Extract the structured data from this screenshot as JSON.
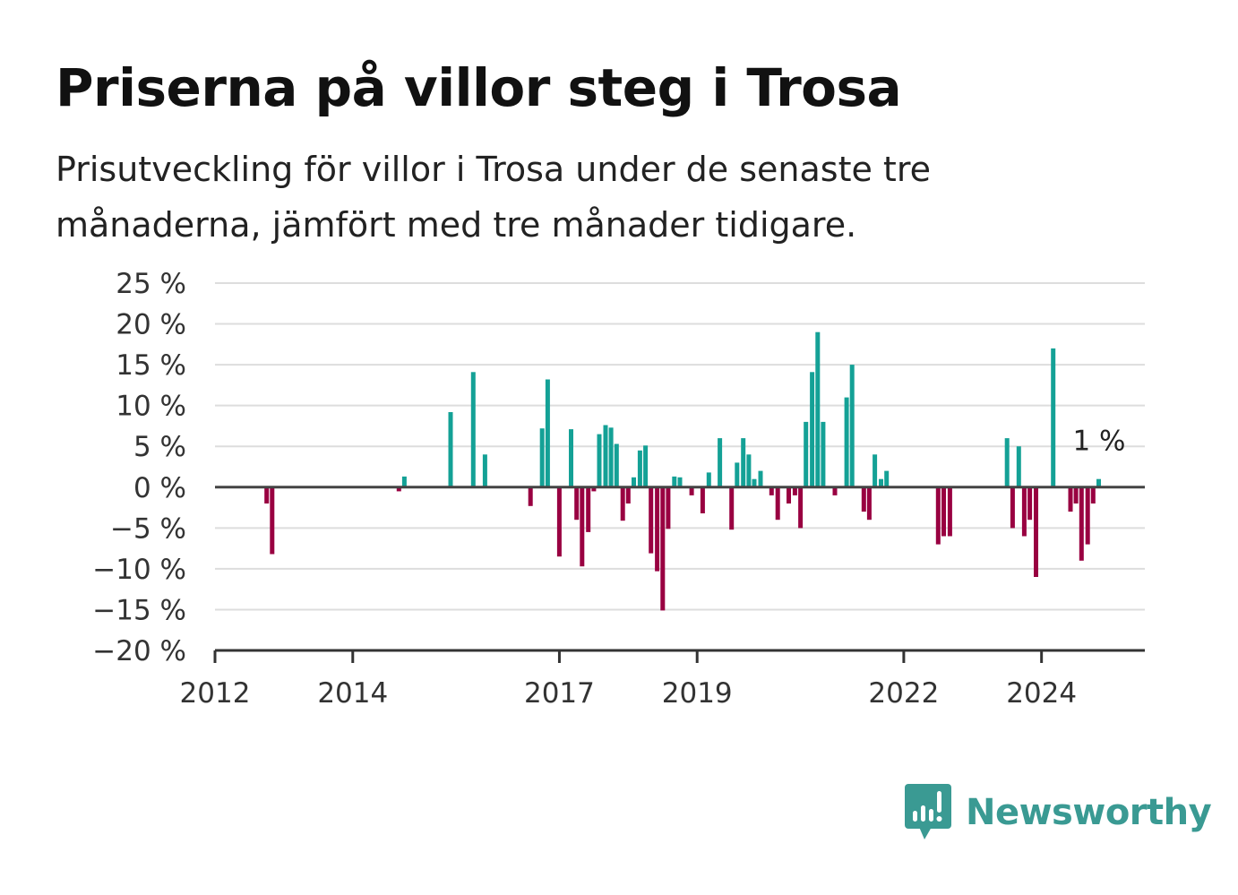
{
  "header": {
    "title": "Priserna på villor steg i Trosa",
    "subtitle": "Prisutveckling för villor i Trosa under de senaste tre månaderna, jämfört med tre månader tidigare."
  },
  "brand": {
    "name": "Newsworthy",
    "color": "#3a9a93",
    "icon": "newsworthy-chart-bubble-icon"
  },
  "chart_data": {
    "type": "bar",
    "title": "Priserna på villor steg i Trosa",
    "subtitle": "Prisutveckling för villor i Trosa under de senaste tre månaderna, jämfört med tre månader tidigare.",
    "xlabel": "",
    "ylabel": "",
    "ylim": [
      -20,
      25
    ],
    "xlim": [
      2012.0,
      2025.5
    ],
    "x_ticks": [
      {
        "value": 2012,
        "label": "2012"
      },
      {
        "value": 2014,
        "label": "2014"
      },
      {
        "value": 2017,
        "label": "2017"
      },
      {
        "value": 2019,
        "label": "2019"
      },
      {
        "value": 2022,
        "label": "2022"
      },
      {
        "value": 2024,
        "label": "2024"
      }
    ],
    "y_ticks": [
      {
        "value": 25,
        "label": "25 %"
      },
      {
        "value": 20,
        "label": "20 %"
      },
      {
        "value": 15,
        "label": "15 %"
      },
      {
        "value": 10,
        "label": "10 %"
      },
      {
        "value": 5,
        "label": "5 %"
      },
      {
        "value": 0,
        "label": "0 %"
      },
      {
        "value": -5,
        "label": "−5 %"
      },
      {
        "value": -10,
        "label": "−10 %"
      },
      {
        "value": -15,
        "label": "−15 %"
      },
      {
        "value": -20,
        "label": "−20 %"
      }
    ],
    "grid": true,
    "legend": "none",
    "colors": {
      "positive": "#14a196",
      "negative": "#990041",
      "zero_line": "#444444",
      "grid": "#dddddd"
    },
    "points": [
      {
        "x": 2012.75,
        "y": -2
      },
      {
        "x": 2012.83,
        "y": -8.2
      },
      {
        "x": 2014.67,
        "y": -0.5
      },
      {
        "x": 2014.75,
        "y": 1.3
      },
      {
        "x": 2015.42,
        "y": 9.2
      },
      {
        "x": 2015.75,
        "y": 14.1
      },
      {
        "x": 2015.92,
        "y": 4
      },
      {
        "x": 2016.58,
        "y": -2.3
      },
      {
        "x": 2016.75,
        "y": 7.2
      },
      {
        "x": 2016.83,
        "y": 13.2
      },
      {
        "x": 2017.0,
        "y": -8.5
      },
      {
        "x": 2017.17,
        "y": 7.1
      },
      {
        "x": 2017.25,
        "y": -4
      },
      {
        "x": 2017.33,
        "y": -9.7
      },
      {
        "x": 2017.42,
        "y": -5.5
      },
      {
        "x": 2017.5,
        "y": -0.5
      },
      {
        "x": 2017.58,
        "y": 6.5
      },
      {
        "x": 2017.67,
        "y": 7.6
      },
      {
        "x": 2017.75,
        "y": 7.3
      },
      {
        "x": 2017.83,
        "y": 5.3
      },
      {
        "x": 2017.92,
        "y": -4.1
      },
      {
        "x": 2018.0,
        "y": -2
      },
      {
        "x": 2018.08,
        "y": 1.2
      },
      {
        "x": 2018.17,
        "y": 4.5
      },
      {
        "x": 2018.25,
        "y": 5.1
      },
      {
        "x": 2018.33,
        "y": -8.1
      },
      {
        "x": 2018.42,
        "y": -10.3
      },
      {
        "x": 2018.5,
        "y": -15.1
      },
      {
        "x": 2018.58,
        "y": -5.1
      },
      {
        "x": 2018.67,
        "y": 1.3
      },
      {
        "x": 2018.75,
        "y": 1.2
      },
      {
        "x": 2018.92,
        "y": -1
      },
      {
        "x": 2019.08,
        "y": -3.2
      },
      {
        "x": 2019.17,
        "y": 1.8
      },
      {
        "x": 2019.33,
        "y": 6
      },
      {
        "x": 2019.5,
        "y": -5.2
      },
      {
        "x": 2019.58,
        "y": 3
      },
      {
        "x": 2019.67,
        "y": 6
      },
      {
        "x": 2019.75,
        "y": 4
      },
      {
        "x": 2019.83,
        "y": 1
      },
      {
        "x": 2019.92,
        "y": 2
      },
      {
        "x": 2020.08,
        "y": -1
      },
      {
        "x": 2020.17,
        "y": -4
      },
      {
        "x": 2020.33,
        "y": -2
      },
      {
        "x": 2020.42,
        "y": -1
      },
      {
        "x": 2020.5,
        "y": -5
      },
      {
        "x": 2020.58,
        "y": 8
      },
      {
        "x": 2020.67,
        "y": 14.1
      },
      {
        "x": 2020.75,
        "y": 19
      },
      {
        "x": 2020.83,
        "y": 8
      },
      {
        "x": 2021.0,
        "y": -1
      },
      {
        "x": 2021.17,
        "y": 11
      },
      {
        "x": 2021.25,
        "y": 15
      },
      {
        "x": 2021.42,
        "y": -3
      },
      {
        "x": 2021.5,
        "y": -4
      },
      {
        "x": 2021.58,
        "y": 4
      },
      {
        "x": 2021.67,
        "y": 1
      },
      {
        "x": 2021.75,
        "y": 2
      },
      {
        "x": 2022.5,
        "y": -7
      },
      {
        "x": 2022.58,
        "y": -6
      },
      {
        "x": 2022.67,
        "y": -6
      },
      {
        "x": 2023.5,
        "y": 6
      },
      {
        "x": 2023.58,
        "y": -5
      },
      {
        "x": 2023.67,
        "y": 5
      },
      {
        "x": 2023.75,
        "y": -6
      },
      {
        "x": 2023.83,
        "y": -4
      },
      {
        "x": 2023.92,
        "y": -11
      },
      {
        "x": 2024.17,
        "y": 17
      },
      {
        "x": 2024.42,
        "y": -3
      },
      {
        "x": 2024.5,
        "y": -2
      },
      {
        "x": 2024.58,
        "y": -9
      },
      {
        "x": 2024.67,
        "y": -7
      },
      {
        "x": 2024.75,
        "y": -2
      },
      {
        "x": 2024.83,
        "y": 1
      }
    ],
    "annotation": {
      "x": 2024.83,
      "y": 1,
      "label": "1 %"
    }
  }
}
